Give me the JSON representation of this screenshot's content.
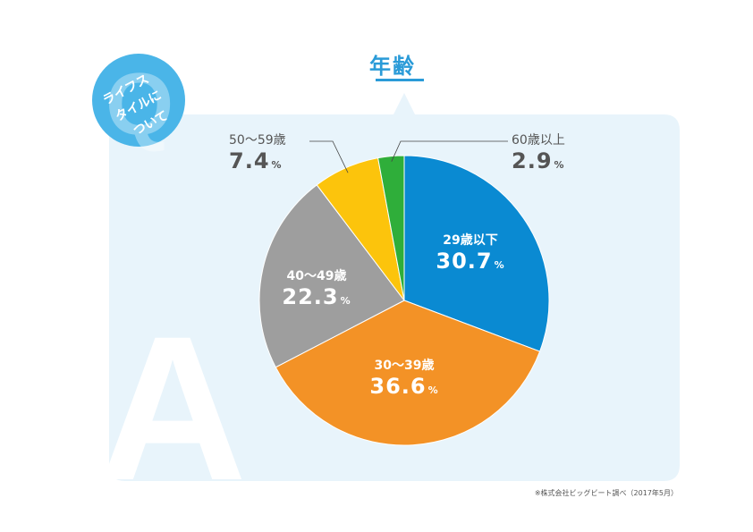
{
  "badge": {
    "line1": "ライフス",
    "line2": "タイルに",
    "line3": "ついて",
    "letter_q": "Q",
    "letter_a": "A"
  },
  "title": "年齢",
  "source": "※株式会社ビッグビート調べ（2017年5月）",
  "colors": {
    "panel": "#e8f4fb",
    "badge": "#4ab5e8",
    "accent": "#2a9bd8"
  },
  "chart_data": {
    "type": "pie",
    "unit": "%",
    "slices": [
      {
        "label": "29歳以下",
        "value": 30.7,
        "color": "#0a8ad2"
      },
      {
        "label": "30〜39歳",
        "value": 36.6,
        "color": "#f39226"
      },
      {
        "label": "40〜49歳",
        "value": 22.3,
        "color": "#9e9e9e"
      },
      {
        "label": "50〜59歳",
        "value": 7.4,
        "color": "#fcc40c"
      },
      {
        "label": "60歳以上",
        "value": 2.9,
        "color": "#2fae3a"
      }
    ]
  }
}
